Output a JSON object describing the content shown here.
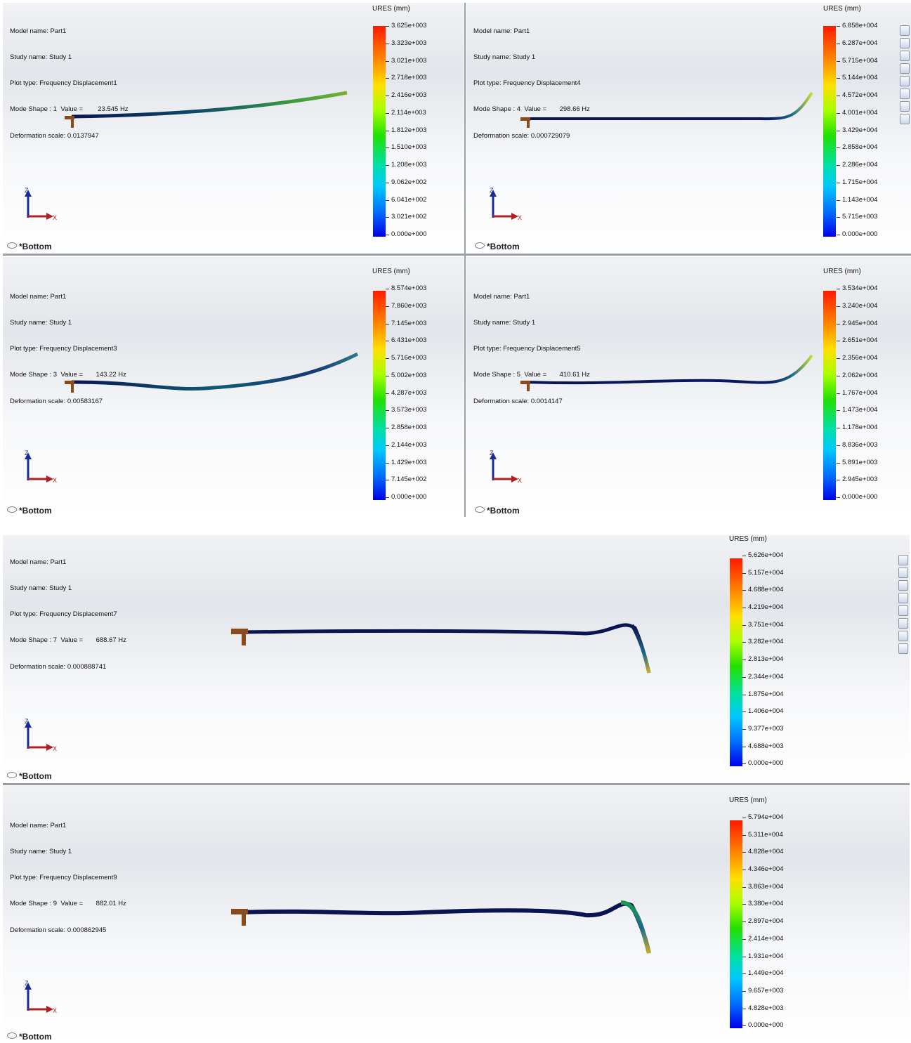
{
  "colorbar_gradient": [
    "#ff1a00",
    "#ff7a00",
    "#ffe000",
    "#a8ff00",
    "#22e000",
    "#00e0a8",
    "#00c8ff",
    "#0070ff",
    "#0000e8"
  ],
  "viewports": [
    {
      "info": [
        "Model name: Part1",
        "Study name: Study 1",
        "Plot type: Frequency Displacement1",
        "Mode Shape : 1  Value =        23.545 Hz",
        "Deformation scale: 0.0137947"
      ],
      "ures_label": "URES (mm)",
      "ticks": [
        "3.625e+003",
        "3.323e+003",
        "3.021e+003",
        "2.718e+003",
        "2.416e+003",
        "2.114e+003",
        "1.812e+003",
        "1.510e+003",
        "1.208e+003",
        "9.062e+002",
        "6.041e+002",
        "3.021e+002",
        "0.000e+000"
      ],
      "view_label": "*Bottom",
      "triad": {
        "z": "Z",
        "x": "X"
      }
    },
    {
      "info": [
        "Model name: Part1",
        "Study name: Study 1",
        "Plot type: Frequency Displacement4",
        "Mode Shape : 4  Value =       298.66 Hz",
        "Deformation scale: 0.000729079"
      ],
      "ures_label": "URES (mm)",
      "ticks": [
        "6.858e+004",
        "6.287e+004",
        "5.715e+004",
        "5.144e+004",
        "4.572e+004",
        "4.001e+004",
        "3.429e+004",
        "2.858e+004",
        "2.286e+004",
        "1.715e+004",
        "1.143e+004",
        "5.715e+003",
        "0.000e+000"
      ],
      "view_label": "*Bottom",
      "triad": {
        "z": "Z",
        "x": "X"
      }
    },
    {
      "info": [
        "Model name: Part1",
        "Study name: Study 1",
        "Plot type: Frequency Displacement3",
        "Mode Shape : 3  Value =       143.22 Hz",
        "Deformation scale: 0.00583167"
      ],
      "ures_label": "URES (mm)",
      "ticks": [
        "8.574e+003",
        "7.860e+003",
        "7.145e+003",
        "6.431e+003",
        "5.716e+003",
        "5.002e+003",
        "4.287e+003",
        "3.573e+003",
        "2.858e+003",
        "2.144e+003",
        "1.429e+003",
        "7.145e+002",
        "0.000e+000"
      ],
      "view_label": "*Bottom",
      "triad": {
        "z": "Z",
        "x": "X"
      }
    },
    {
      "info": [
        "Model name: Part1",
        "Study name: Study 1",
        "Plot type: Frequency Displacement5",
        "Mode Shape : 5  Value =       410.61 Hz",
        "Deformation scale: 0.0014147"
      ],
      "ures_label": "URES (mm)",
      "ticks": [
        "3.534e+004",
        "3.240e+004",
        "2.945e+004",
        "2.651e+004",
        "2.356e+004",
        "2.062e+004",
        "1.767e+004",
        "1.473e+004",
        "1.178e+004",
        "8.836e+003",
        "5.891e+003",
        "2.945e+003",
        "0.000e+000"
      ],
      "view_label": "*Bottom",
      "triad": {
        "z": "Z",
        "x": "X"
      }
    },
    {
      "info": [
        "Model name: Part1",
        "Study name: Study 1",
        "Plot type: Frequency Displacement7",
        "Mode Shape : 7  Value =       688.67 Hz",
        "Deformation scale: 0.000888741"
      ],
      "ures_label": "URES (mm)",
      "ticks": [
        "5.626e+004",
        "5.157e+004",
        "4.688e+004",
        "4.219e+004",
        "3.751e+004",
        "3.282e+004",
        "2.813e+004",
        "2.344e+004",
        "1.875e+004",
        "1.406e+004",
        "9.377e+003",
        "4.688e+003",
        "0.000e+000"
      ],
      "view_label": "*Bottom",
      "triad": {
        "z": "Z",
        "x": "X"
      }
    },
    {
      "info": [
        "Model name: Part1",
        "Study name: Study 1",
        "Plot type: Frequency Displacement9",
        "Mode Shape : 9  Value =       882.01 Hz",
        "Deformation scale: 0.000862945"
      ],
      "ures_label": "URES (mm)",
      "ticks": [
        "5.794e+004",
        "5.311e+004",
        "4.828e+004",
        "4.346e+004",
        "3.863e+004",
        "3.380e+004",
        "2.897e+004",
        "2.414e+004",
        "1.931e+004",
        "1.449e+004",
        "9.657e+003",
        "4.828e+003",
        "0.000e+000"
      ],
      "view_label": "*Bottom",
      "triad": {
        "z": "Z",
        "x": "X"
      }
    }
  ],
  "toolbar_icons": [
    "display-style-icon",
    "hide-show-icon",
    "edit-appearance-icon",
    "apply-scene-icon",
    "view-settings-icon",
    "section-view-icon",
    "view-orientation-icon",
    "zoom-icon"
  ]
}
